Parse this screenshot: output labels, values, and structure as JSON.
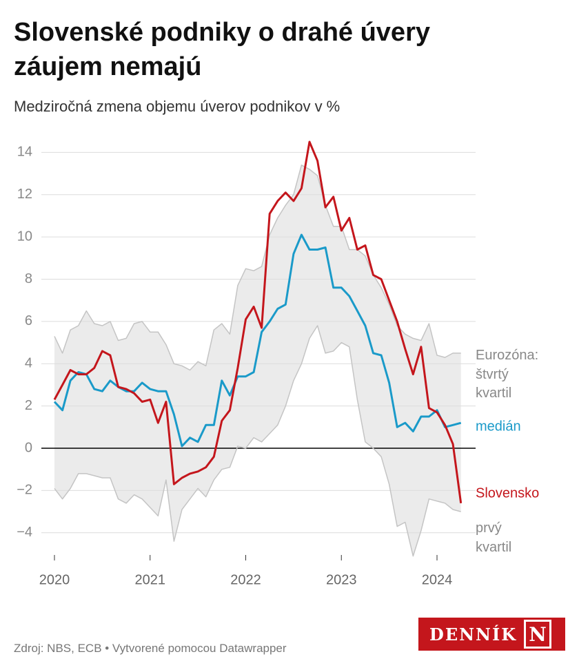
{
  "chart_data": {
    "type": "line",
    "title": "Slovenské podniky o drahé úvery záujem nemajú",
    "subtitle": "Medziročná zmena objemu úverov podnikov v %",
    "source": "Zdroj: NBS, ECB • Vytvorené pomocou Datawrapper",
    "categories": [
      "2020",
      null,
      null,
      null,
      null,
      null,
      null,
      null,
      null,
      null,
      null,
      null,
      "2021",
      null,
      null,
      null,
      null,
      null,
      null,
      null,
      null,
      null,
      null,
      null,
      "2022",
      null,
      null,
      null,
      null,
      null,
      null,
      null,
      null,
      null,
      null,
      null,
      "2023",
      null,
      null,
      null,
      null,
      null,
      null,
      null,
      null,
      null,
      null,
      null,
      "2024",
      null,
      null,
      null
    ],
    "ylim": [
      -5,
      14.5
    ],
    "yticks": [
      {
        "value": -4,
        "label": "−4"
      },
      {
        "value": -2,
        "label": "−2"
      },
      0,
      2,
      4,
      6,
      8,
      10,
      12,
      14
    ],
    "grid": true,
    "band_fill": "#ebebeb",
    "series": [
      {
        "name": "Eurozóna: štvrtý kvartil",
        "color": "#c4c4c4",
        "label_color": "#888888",
        "values": [
          5.3,
          4.5,
          5.6,
          5.8,
          6.5,
          5.9,
          5.8,
          6.0,
          5.1,
          5.2,
          5.9,
          6.0,
          5.5,
          5.5,
          4.9,
          4.0,
          3.9,
          3.7,
          4.1,
          3.9,
          5.6,
          5.9,
          5.4,
          7.7,
          8.5,
          8.4,
          8.6,
          10.1,
          10.9,
          11.5,
          12.0,
          13.4,
          13.2,
          12.9,
          11.5,
          10.5,
          10.5,
          9.4,
          9.4,
          9.1,
          8.2,
          7.6,
          6.8,
          5.8,
          5.4,
          5.2,
          5.1,
          5.9,
          4.4,
          4.3,
          4.5,
          4.5
        ]
      },
      {
        "name": "prvý kvartil",
        "color": "#c4c4c4",
        "label_color": "#888888",
        "values": [
          -1.9,
          -2.4,
          -1.9,
          -1.2,
          -1.2,
          -1.3,
          -1.4,
          -1.4,
          -2.4,
          -2.6,
          -2.2,
          -2.4,
          -2.8,
          -3.2,
          -1.5,
          -4.4,
          -2.9,
          -2.4,
          -1.9,
          -2.3,
          -1.5,
          -1.0,
          -0.9,
          0.1,
          0.0,
          0.5,
          0.3,
          0.7,
          1.1,
          2.0,
          3.2,
          4.0,
          5.2,
          5.8,
          4.5,
          4.6,
          5.0,
          4.8,
          2.3,
          0.3,
          0.0,
          -0.4,
          -1.7,
          -3.7,
          -3.5,
          -5.1,
          -3.9,
          -2.4,
          -2.5,
          -2.6,
          -2.9,
          -3.0
        ]
      },
      {
        "name": "medián",
        "color": "#1a9ac9",
        "values": [
          2.2,
          1.8,
          3.2,
          3.6,
          3.5,
          2.8,
          2.7,
          3.2,
          2.9,
          2.7,
          2.7,
          3.1,
          2.8,
          2.7,
          2.7,
          1.6,
          0.1,
          0.5,
          0.3,
          1.1,
          1.1,
          3.2,
          2.5,
          3.4,
          3.4,
          3.6,
          5.5,
          6.0,
          6.6,
          6.8,
          9.2,
          10.1,
          9.4,
          9.4,
          9.5,
          7.6,
          7.6,
          7.2,
          6.5,
          5.8,
          4.5,
          4.4,
          3.1,
          1.0,
          1.2,
          0.8,
          1.5,
          1.5,
          1.8,
          1.0,
          1.1,
          1.2
        ]
      },
      {
        "name": "Slovensko",
        "color": "#c4161c",
        "values": [
          2.3,
          3.0,
          3.7,
          3.5,
          3.5,
          3.8,
          4.6,
          4.4,
          2.9,
          2.8,
          2.6,
          2.2,
          2.3,
          1.2,
          2.2,
          -1.7,
          -1.4,
          -1.2,
          -1.1,
          -0.9,
          -0.4,
          1.3,
          1.8,
          3.8,
          6.1,
          6.7,
          5.7,
          11.1,
          11.7,
          12.1,
          11.7,
          12.3,
          14.5,
          13.6,
          11.4,
          11.9,
          10.3,
          10.9,
          9.4,
          9.6,
          8.2,
          8.0,
          7.0,
          6.0,
          4.7,
          3.5,
          4.8,
          1.9,
          1.7,
          1.1,
          0.2,
          -2.6
        ]
      }
    ]
  },
  "logo": {
    "text": "DENNÍK",
    "mark": "N"
  }
}
